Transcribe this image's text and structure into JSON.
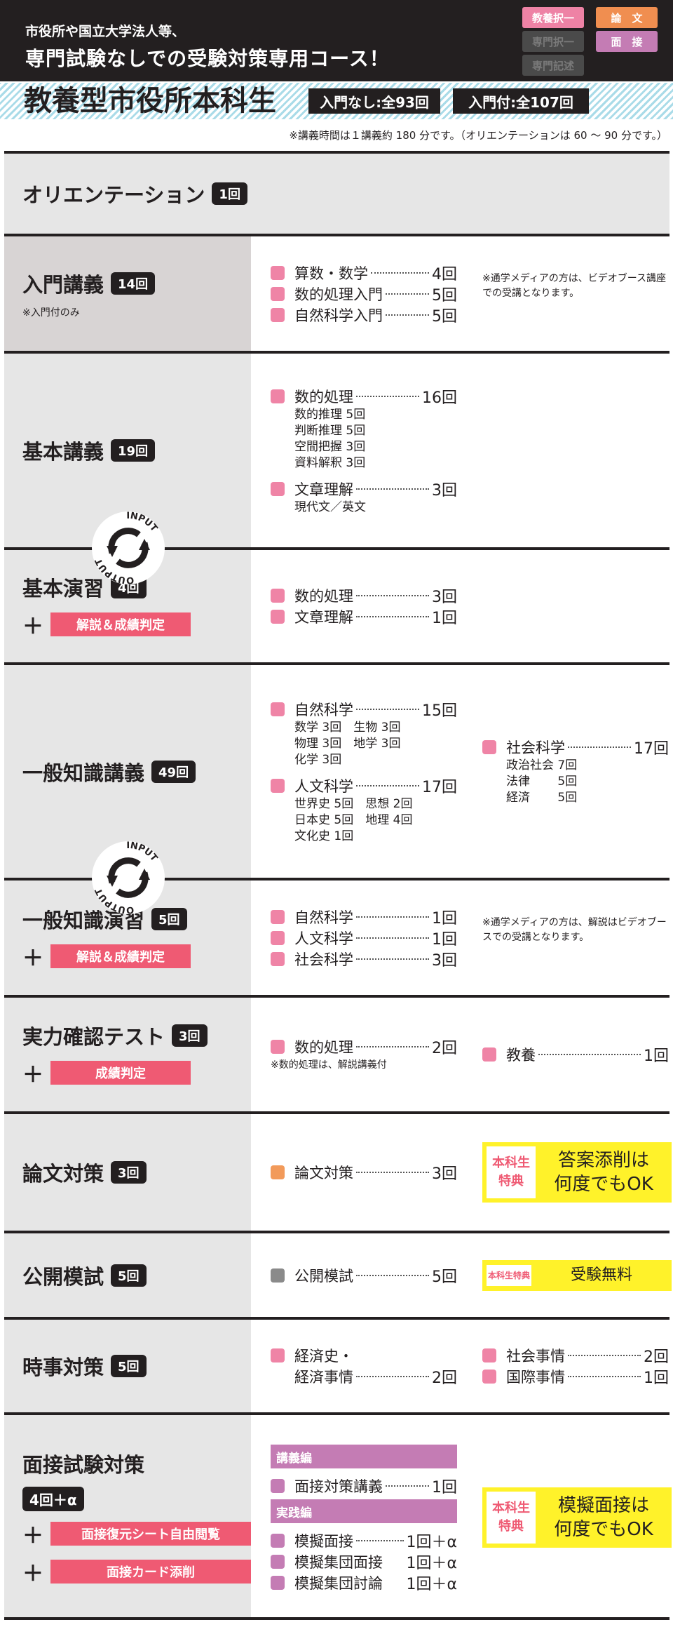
{
  "header": {
    "line1": "市役所や国立大学法人等、",
    "line2": "専門試験なしでの受験対策専用コース！",
    "exam_tags": [
      {
        "label": "教養択一",
        "color": "#ee82a5",
        "active": true
      },
      {
        "label": "論　文",
        "color": "#f08e50",
        "active": true
      },
      {
        "label": "専門択一",
        "color": "#4a4a4a",
        "active": false
      },
      {
        "label": "面　接",
        "color": "#c47cb4",
        "active": true
      },
      {
        "label": "専門記述",
        "color": "#4a4a4a",
        "active": false
      }
    ]
  },
  "banner": {
    "title": "教養型市役所本科生",
    "total_without_intro": "入門なし:全93回",
    "total_with_intro": "入門付:全107回"
  },
  "note": "※講義時間は１講義約 180 分です。（オリエンテーションは 60 ～ 90 分です。）",
  "cycle": {
    "input": "INPUT",
    "output": "OUTPUT"
  },
  "colors": {
    "pink": "#ef84a6",
    "orange": "#f29a5a",
    "gray": "#8a8a8a",
    "purple": "#c47cb4",
    "red": "#ef5a73",
    "yellow": "#fff22a"
  },
  "sections": [
    {
      "title": "オリエンテーション",
      "count": "1回",
      "full": true
    },
    {
      "title": "入門講義",
      "count": "14回",
      "note": "※入門付のみ",
      "dark": true,
      "cols": [
        [
          {
            "label": "算数・数学",
            "count": "4回",
            "color": "pink"
          },
          {
            "label": "数的処理入門",
            "count": "5回",
            "color": "pink"
          },
          {
            "label": "自然科学入門",
            "count": "5回",
            "color": "pink"
          }
        ]
      ],
      "right_note": "※通学メディアの方は、ビデオブース講座での受講となります。"
    },
    {
      "title": "基本講義",
      "count": "19回",
      "cols": [
        [
          {
            "label": "数的処理",
            "count": "16回",
            "color": "pink",
            "subs": [
              "数的推理 5回",
              "判断推理 5回",
              "空間把握 3回",
              "資料解釈 3回"
            ]
          },
          {
            "label": "文章理解",
            "count": "3回",
            "color": "pink",
            "subs": [
              "現代文／英文"
            ]
          }
        ]
      ]
    },
    {
      "title": "基本演習",
      "count": "4回",
      "tags": [
        "解説＆成績判定"
      ],
      "cols": [
        [
          {
            "label": "数的処理",
            "count": "3回",
            "color": "pink"
          },
          {
            "label": "文章理解",
            "count": "1回",
            "color": "pink"
          }
        ]
      ]
    },
    {
      "title": "一般知識講義",
      "count": "49回",
      "cols": [
        [
          {
            "label": "自然科学",
            "count": "15回",
            "color": "pink",
            "subs": [
              "数学 3回　生物 3回",
              "物理 3回　地学 3回",
              "化学 3回"
            ]
          },
          {
            "label": "人文科学",
            "count": "17回",
            "color": "pink",
            "subs": [
              "世界史 5回　思想 2回",
              "日本史 5回　地理 4回",
              "文化史 1回"
            ]
          }
        ],
        [
          {
            "label": "社会科学",
            "count": "17回",
            "color": "pink",
            "subs": [
              "政治社会 7回",
              "法律　　 5回",
              "経済　　 5回"
            ]
          }
        ]
      ]
    },
    {
      "title": "一般知識演習",
      "count": "5回",
      "tags": [
        "解説＆成績判定"
      ],
      "cols": [
        [
          {
            "label": "自然科学",
            "count": "1回",
            "color": "pink"
          },
          {
            "label": "人文科学",
            "count": "1回",
            "color": "pink"
          },
          {
            "label": "社会科学",
            "count": "3回",
            "color": "pink"
          }
        ]
      ],
      "right_note": "※通学メディアの方は、解説はビデオブースでの受講となります。"
    },
    {
      "title": "実力確認テスト",
      "count": "3回",
      "tags": [
        "成績判定"
      ],
      "cols": [
        [
          {
            "label": "数的処理",
            "count": "2回",
            "color": "pink",
            "note": "※数的処理は、解説講義付"
          }
        ],
        [
          {
            "label": "教養",
            "count": "1回",
            "color": "pink"
          }
        ]
      ]
    },
    {
      "title": "論文対策",
      "count": "3回",
      "cols": [
        [
          {
            "label": "論文対策",
            "count": "3回",
            "color": "orange"
          }
        ]
      ],
      "benefit": {
        "label": "本科生特典",
        "text": "答案添削は何度でもOK"
      }
    },
    {
      "title": "公開模試",
      "count": "5回",
      "cols": [
        [
          {
            "label": "公開模試",
            "count": "5回",
            "color": "gray"
          }
        ]
      ],
      "benefit": {
        "label": "本科生特典",
        "text": "受験無料",
        "small": true
      }
    },
    {
      "title": "時事対策",
      "count": "5回",
      "cols": [
        [
          {
            "label": "経済史・",
            "count": "",
            "color": "pink",
            "nodots": true
          },
          {
            "label": "経済事情",
            "count": "2回",
            "color": "",
            "indent": true
          }
        ],
        [
          {
            "label": "社会事情",
            "count": "2回",
            "color": "pink"
          },
          {
            "label": "国際事情",
            "count": "1回",
            "color": "pink"
          }
        ]
      ]
    },
    {
      "title": "面接試験対策",
      "count": "4回＋α",
      "badge_below": true,
      "tags": [
        "面接復元シート自由閲覧",
        "面接カード添削"
      ],
      "cols": [
        [
          {
            "header": "講義編"
          },
          {
            "label": "面接対策講義",
            "count": "1回",
            "color": "purple"
          },
          {
            "header": "実践編"
          },
          {
            "label": "模擬面接",
            "count": "1回＋α",
            "color": "purple"
          },
          {
            "label": "模擬集団面接",
            "count": "1回＋α",
            "color": "purple",
            "nodots": true
          },
          {
            "label": "模擬集団討論",
            "count": "1回＋α",
            "color": "purple",
            "nodots": true
          }
        ]
      ],
      "benefit": {
        "label": "本科生特典",
        "text": "模擬面接は何度でもOK"
      }
    }
  ]
}
